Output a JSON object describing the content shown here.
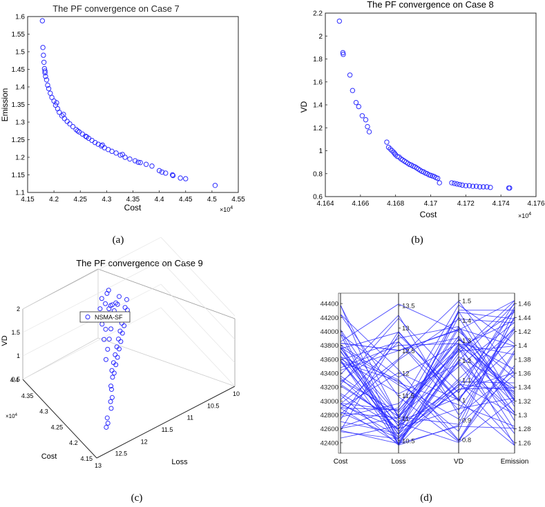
{
  "colors": {
    "marker": "#2b2bff",
    "axis": "#262626",
    "grid": "#e3e3e3"
  },
  "chart_data": [
    {
      "id": "a",
      "type": "scatter",
      "title": "The PF convergence on Case 7",
      "xlabel": "Cost",
      "ylabel": "Emission",
      "x_exponent": "×10",
      "x_exponent_power": "4",
      "caption": "(a)",
      "xlim": [
        4.15,
        4.55
      ],
      "ylim": [
        1.1,
        1.6
      ],
      "xticks": [
        4.15,
        4.2,
        4.25,
        4.3,
        4.35,
        4.4,
        4.45,
        4.5,
        4.55
      ],
      "xtick_labels": [
        "4.15",
        "4.2",
        "4.25",
        "4.3",
        "4.35",
        "4.4",
        "4.45",
        "4.5",
        "4.55"
      ],
      "yticks": [
        1.1,
        1.15,
        1.2,
        1.25,
        1.3,
        1.35,
        1.4,
        1.45,
        1.5,
        1.55,
        1.6
      ],
      "ytick_labels": [
        "1.1",
        "1.15",
        "1.2",
        "1.25",
        "1.3",
        "1.35",
        "1.4",
        "1.45",
        "1.5",
        "1.55",
        "1.6"
      ],
      "x": [
        4.178,
        4.179,
        4.18,
        4.181,
        4.182,
        4.183,
        4.184,
        4.186,
        4.188,
        4.19,
        4.193,
        4.196,
        4.2,
        4.203,
        4.207,
        4.21,
        4.215,
        4.22,
        4.225,
        4.23,
        4.236,
        4.242,
        4.248,
        4.254,
        4.26,
        4.266,
        4.272,
        4.278,
        4.284,
        4.29,
        4.296,
        4.303,
        4.31,
        4.318,
        4.326,
        4.335,
        4.344,
        4.354,
        4.364,
        4.375,
        4.386,
        4.4,
        4.412,
        4.426,
        4.44,
        4.45,
        4.506,
        4.183,
        4.205,
        4.218,
        4.245,
        4.262,
        4.292,
        4.33,
        4.36,
        4.405,
        4.425
      ],
      "y": [
        1.588,
        1.512,
        1.49,
        1.47,
        1.452,
        1.44,
        1.43,
        1.42,
        1.405,
        1.395,
        1.382,
        1.37,
        1.36,
        1.348,
        1.338,
        1.328,
        1.318,
        1.31,
        1.302,
        1.295,
        1.287,
        1.279,
        1.272,
        1.266,
        1.26,
        1.254,
        1.248,
        1.242,
        1.237,
        1.232,
        1.227,
        1.222,
        1.217,
        1.212,
        1.206,
        1.2,
        1.195,
        1.19,
        1.185,
        1.18,
        1.175,
        1.162,
        1.155,
        1.148,
        1.141,
        1.139,
        1.12,
        1.445,
        1.355,
        1.322,
        1.275,
        1.258,
        1.235,
        1.208,
        1.186,
        1.158,
        1.15
      ]
    },
    {
      "id": "b",
      "type": "scatter",
      "title": "The PF convergence on Case 8",
      "xlabel": "Cost",
      "ylabel": "VD",
      "x_exponent": "×10",
      "x_exponent_power": "4",
      "caption": "(b)",
      "xlim": [
        4.164,
        4.176
      ],
      "ylim": [
        0.6,
        2.2
      ],
      "xticks": [
        4.164,
        4.166,
        4.168,
        4.17,
        4.172,
        4.174,
        4.176
      ],
      "xtick_labels": [
        "4.164",
        "4.166",
        "4.168",
        "4.17",
        "4.172",
        "4.174",
        "4.176"
      ],
      "yticks": [
        0.6,
        0.8,
        1.0,
        1.2,
        1.4,
        1.6,
        1.8,
        2.0,
        2.2
      ],
      "ytick_labels": [
        "0.6",
        "0.8",
        "1",
        "1.2",
        "1.4",
        "1.6",
        "1.8",
        "2",
        "2.2"
      ],
      "x": [
        4.1648,
        4.165,
        4.16502,
        4.1654,
        4.16555,
        4.16575,
        4.1659,
        4.1661,
        4.1663,
        4.1664,
        4.1665,
        4.1675,
        4.1676,
        4.1677,
        4.1678,
        4.1679,
        4.16795,
        4.168,
        4.1681,
        4.1682,
        4.1683,
        4.1684,
        4.1685,
        4.1686,
        4.1687,
        4.1688,
        4.1689,
        4.169,
        4.1691,
        4.1692,
        4.1693,
        4.1694,
        4.1695,
        4.1696,
        4.1697,
        4.1698,
        4.1699,
        4.17,
        4.1701,
        4.1702,
        4.1703,
        4.1704,
        4.1705,
        4.1712,
        4.17135,
        4.1715,
        4.17165,
        4.1718,
        4.172,
        4.1722,
        4.1724,
        4.1726,
        4.1728,
        4.173,
        4.1732,
        4.1734,
        4.17445,
        4.1745
      ],
      "y": [
        2.13,
        1.855,
        1.84,
        1.66,
        1.525,
        1.42,
        1.385,
        1.305,
        1.27,
        1.21,
        1.165,
        1.075,
        1.03,
        1.015,
        1.0,
        0.985,
        0.975,
        0.965,
        0.95,
        0.945,
        0.93,
        0.92,
        0.91,
        0.9,
        0.89,
        0.88,
        0.875,
        0.865,
        0.86,
        0.85,
        0.84,
        0.83,
        0.82,
        0.815,
        0.805,
        0.8,
        0.79,
        0.785,
        0.78,
        0.775,
        0.765,
        0.76,
        0.72,
        0.72,
        0.715,
        0.71,
        0.705,
        0.7,
        0.695,
        0.695,
        0.69,
        0.69,
        0.685,
        0.685,
        0.685,
        0.68,
        0.675,
        0.675
      ]
    },
    {
      "id": "c",
      "type": "scatter",
      "title": "The PF convergence on Case 9",
      "xlabel": "Loss",
      "ylabel": "Cost",
      "zlabel": "VD",
      "y_exponent": "×10",
      "y_exponent_power": "4",
      "caption": "(c)",
      "legend": "NSMA-SF",
      "legend_position": "top-left",
      "xlim": [
        10,
        13
      ],
      "ylim": [
        4.15,
        4.4
      ],
      "zlim": [
        0.5,
        2
      ],
      "xtick_labels": [
        "10",
        "10.5",
        "11",
        "11.5",
        "12",
        "12.5",
        "13"
      ],
      "ytick_labels": [
        "4.15",
        "4.2",
        "4.25",
        "4.3",
        "4.35",
        "4.4"
      ],
      "ztick_labels": [
        "0.5",
        "1",
        "1.5",
        "2"
      ],
      "x": [
        12.6,
        12.5,
        12.45,
        12.3,
        12.25,
        12.15,
        12.1,
        12.05,
        11.95,
        11.9,
        11.85,
        11.8,
        11.75,
        11.7,
        11.65,
        11.6,
        11.55,
        11.5,
        11.45,
        11.4,
        11.35,
        11.3,
        11.25,
        11.2,
        11.15,
        11.1,
        11.05,
        11.0,
        11.9,
        11.8,
        11.7,
        11.6,
        11.5,
        11.4,
        11.3,
        11.2,
        11.1,
        11.75,
        11.65,
        11.55,
        11.45,
        11.35,
        11.25,
        11.6,
        11.5,
        11.4,
        11.3,
        11.45,
        11.35,
        11.2
      ],
      "y": [
        4.18,
        4.19,
        4.2,
        4.21,
        4.22,
        4.23,
        4.24,
        4.25,
        4.26,
        4.27,
        4.27,
        4.28,
        4.28,
        4.29,
        4.29,
        4.3,
        4.3,
        4.31,
        4.31,
        4.32,
        4.32,
        4.33,
        4.33,
        4.34,
        4.34,
        4.35,
        4.35,
        4.36,
        4.29,
        4.3,
        4.31,
        4.32,
        4.33,
        4.34,
        4.35,
        4.36,
        4.37,
        4.32,
        4.33,
        4.34,
        4.35,
        4.36,
        4.37,
        4.35,
        4.36,
        4.37,
        4.38,
        4.38,
        4.39,
        4.39
      ],
      "z": [
        0.75,
        0.72,
        0.74,
        0.8,
        0.85,
        0.82,
        0.9,
        0.88,
        0.95,
        1.0,
        0.92,
        1.05,
        0.98,
        1.1,
        1.02,
        1.15,
        1.08,
        1.2,
        1.12,
        1.25,
        1.18,
        1.3,
        1.22,
        1.35,
        1.28,
        1.4,
        1.32,
        1.45,
        1.1,
        1.2,
        1.3,
        1.4,
        1.5,
        1.55,
        1.6,
        1.45,
        1.5,
        1.25,
        1.35,
        1.45,
        1.55,
        1.5,
        1.4,
        1.3,
        1.4,
        1.5,
        1.6,
        1.35,
        1.45,
        1.55
      ]
    },
    {
      "id": "d",
      "type": "line",
      "subtype": "parallel-coordinates",
      "caption": "(d)",
      "axes": [
        "Cost",
        "Loss",
        "VD",
        "Emission"
      ],
      "axis_ranges": [
        [
          42300,
          44500
        ],
        [
          10.3,
          13.7
        ],
        [
          0.75,
          1.52
        ],
        [
          1.25,
          1.47
        ]
      ],
      "cost_ticks": [
        "42400",
        "42600",
        "42800",
        "43000",
        "43200",
        "43400",
        "43600",
        "43800",
        "44000",
        "44200",
        "44400"
      ],
      "loss_ticks": [
        "10.5",
        "11",
        "11.5",
        "12",
        "12.5",
        "13",
        "13.5"
      ],
      "vd_ticks": [
        "0.8",
        "0.9",
        "1",
        "1.1",
        "1.2",
        "1.3",
        "1.4",
        "1.5"
      ],
      "emission_ticks": [
        "1.26",
        "1.28",
        "1.3",
        "1.32",
        "1.34",
        "1.36",
        "1.38",
        "1.4",
        "1.42",
        "1.44",
        "1.46"
      ],
      "series_count": 60
    }
  ]
}
